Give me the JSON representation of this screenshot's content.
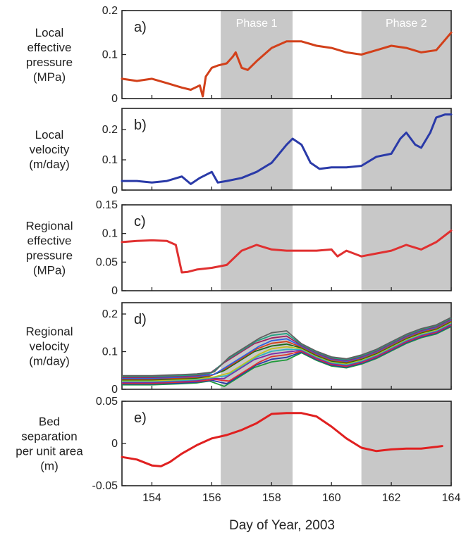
{
  "chart_data": {
    "type": "line",
    "xlabel": "Day of Year, 2003",
    "xlim": [
      153,
      164
    ],
    "xticks": [
      "154",
      "156",
      "158",
      "160",
      "162",
      "164"
    ],
    "phases": [
      {
        "label": "Phase 1",
        "x": [
          156.3,
          158.7
        ],
        "color": "#c8c8c8"
      },
      {
        "label": "Phase 2",
        "x": [
          161.0,
          164.0
        ],
        "color": "#c8c8c8"
      }
    ],
    "panels": [
      {
        "label": "a)",
        "ylabel": [
          "Local",
          "effective",
          "pressure",
          "(MPa)"
        ],
        "ylim": [
          0,
          0.2
        ],
        "yticks": [
          "0",
          "0.1",
          "0.2"
        ],
        "series": [
          {
            "color": "#d2401a",
            "x": [
              153,
              153.5,
              154,
              154.5,
              155,
              155.3,
              155.6,
              155.7,
              155.8,
              156,
              156.2,
              156.5,
              156.7,
              156.8,
              157,
              157.2,
              157.5,
              158,
              158.5,
              159,
              159.5,
              160,
              160.5,
              161,
              161.5,
              162,
              162.5,
              163,
              163.5,
              164
            ],
            "y": [
              0.045,
              0.04,
              0.045,
              0.035,
              0.025,
              0.02,
              0.03,
              0.005,
              0.05,
              0.07,
              0.075,
              0.08,
              0.095,
              0.105,
              0.07,
              0.065,
              0.085,
              0.115,
              0.13,
              0.13,
              0.12,
              0.115,
              0.105,
              0.1,
              0.11,
              0.12,
              0.115,
              0.105,
              0.11,
              0.15
            ]
          }
        ]
      },
      {
        "label": "b)",
        "ylabel": [
          "Local",
          "velocity",
          "(m/day)"
        ],
        "ylim": [
          0,
          0.27
        ],
        "yticks": [
          "0",
          "0.1",
          "0.2"
        ],
        "series": [
          {
            "color": "#2a3aa8",
            "x": [
              153,
              153.5,
              154,
              154.5,
              155,
              155.3,
              155.6,
              156,
              156.2,
              156.5,
              157,
              157.5,
              158,
              158.5,
              158.7,
              159,
              159.3,
              159.6,
              160,
              160.5,
              161,
              161.5,
              162,
              162.3,
              162.5,
              162.8,
              163,
              163.3,
              163.5,
              163.8,
              164
            ],
            "y": [
              0.03,
              0.03,
              0.025,
              0.03,
              0.045,
              0.02,
              0.04,
              0.06,
              0.025,
              0.03,
              0.04,
              0.06,
              0.09,
              0.15,
              0.17,
              0.15,
              0.09,
              0.07,
              0.075,
              0.075,
              0.08,
              0.11,
              0.12,
              0.17,
              0.19,
              0.15,
              0.14,
              0.19,
              0.24,
              0.25,
              0.25
            ]
          }
        ]
      },
      {
        "label": "c)",
        "ylabel": [
          "Regional",
          "effective",
          "pressure",
          "(MPa)"
        ],
        "ylim": [
          0,
          0.15
        ],
        "yticks": [
          "0",
          "0.05",
          "0.1",
          "0.15"
        ],
        "series": [
          {
            "color": "#e03030",
            "x": [
              153,
              153.5,
              154,
              154.5,
              154.8,
              155,
              155.2,
              155.5,
              156,
              156.5,
              156.8,
              157,
              157.5,
              158,
              158.5,
              159,
              159.5,
              160,
              160.2,
              160.5,
              161,
              161.5,
              162,
              162.5,
              163,
              163.5,
              164
            ],
            "y": [
              0.085,
              0.087,
              0.088,
              0.087,
              0.08,
              0.032,
              0.033,
              0.037,
              0.04,
              0.045,
              0.06,
              0.07,
              0.08,
              0.072,
              0.07,
              0.07,
              0.07,
              0.072,
              0.06,
              0.07,
              0.06,
              0.065,
              0.07,
              0.08,
              0.072,
              0.085,
              0.105
            ]
          }
        ]
      },
      {
        "label": "d)",
        "ylabel": [
          "Regional",
          "velocity",
          "(m/day)"
        ],
        "ylim": [
          0,
          0.23
        ],
        "yticks": [
          "0",
          "0.1",
          "0.2"
        ],
        "ensemble": {
          "x": [
            153,
            154,
            155,
            155.5,
            156,
            156.5,
            157,
            157.5,
            158,
            158.5,
            159,
            159.5,
            160,
            160.5,
            161,
            161.5,
            162,
            162.5,
            163,
            163.5,
            164
          ],
          "y": [
            0.025,
            0.025,
            0.028,
            0.03,
            0.035,
            0.05,
            0.075,
            0.1,
            0.115,
            0.12,
            0.11,
            0.09,
            0.075,
            0.07,
            0.08,
            0.095,
            0.115,
            0.135,
            0.15,
            0.16,
            0.18
          ],
          "colors": [
            "#1f9a3a",
            "#2a3aa8",
            "#e03030",
            "#7a2aa8",
            "#30b0c0",
            "#c0c020",
            "#1a6a1a",
            "#d2401a",
            "#3060e0",
            "#a02060",
            "#20a080",
            "#606060"
          ]
        }
      },
      {
        "label": "e)",
        "ylabel": [
          "Bed",
          "separation",
          "per unit area",
          "(m)"
        ],
        "ylim": [
          -0.05,
          0.05
        ],
        "yticks": [
          "-0.05",
          "0",
          "0.05"
        ],
        "series": [
          {
            "color": "#e02020",
            "x": [
              153,
              153.5,
              154,
              154.3,
              154.6,
              155,
              155.5,
              156,
              156.5,
              157,
              157.5,
              158,
              158.5,
              159,
              159.5,
              160,
              160.5,
              161,
              161.5,
              162,
              162.5,
              163,
              163.5,
              163.7
            ],
            "y": [
              -0.016,
              -0.019,
              -0.026,
              -0.027,
              -0.022,
              -0.012,
              -0.002,
              0.006,
              0.01,
              0.016,
              0.024,
              0.035,
              0.036,
              0.036,
              0.032,
              0.02,
              0.006,
              -0.005,
              -0.009,
              -0.007,
              -0.006,
              -0.006,
              -0.004,
              -0.003
            ]
          }
        ]
      }
    ]
  }
}
